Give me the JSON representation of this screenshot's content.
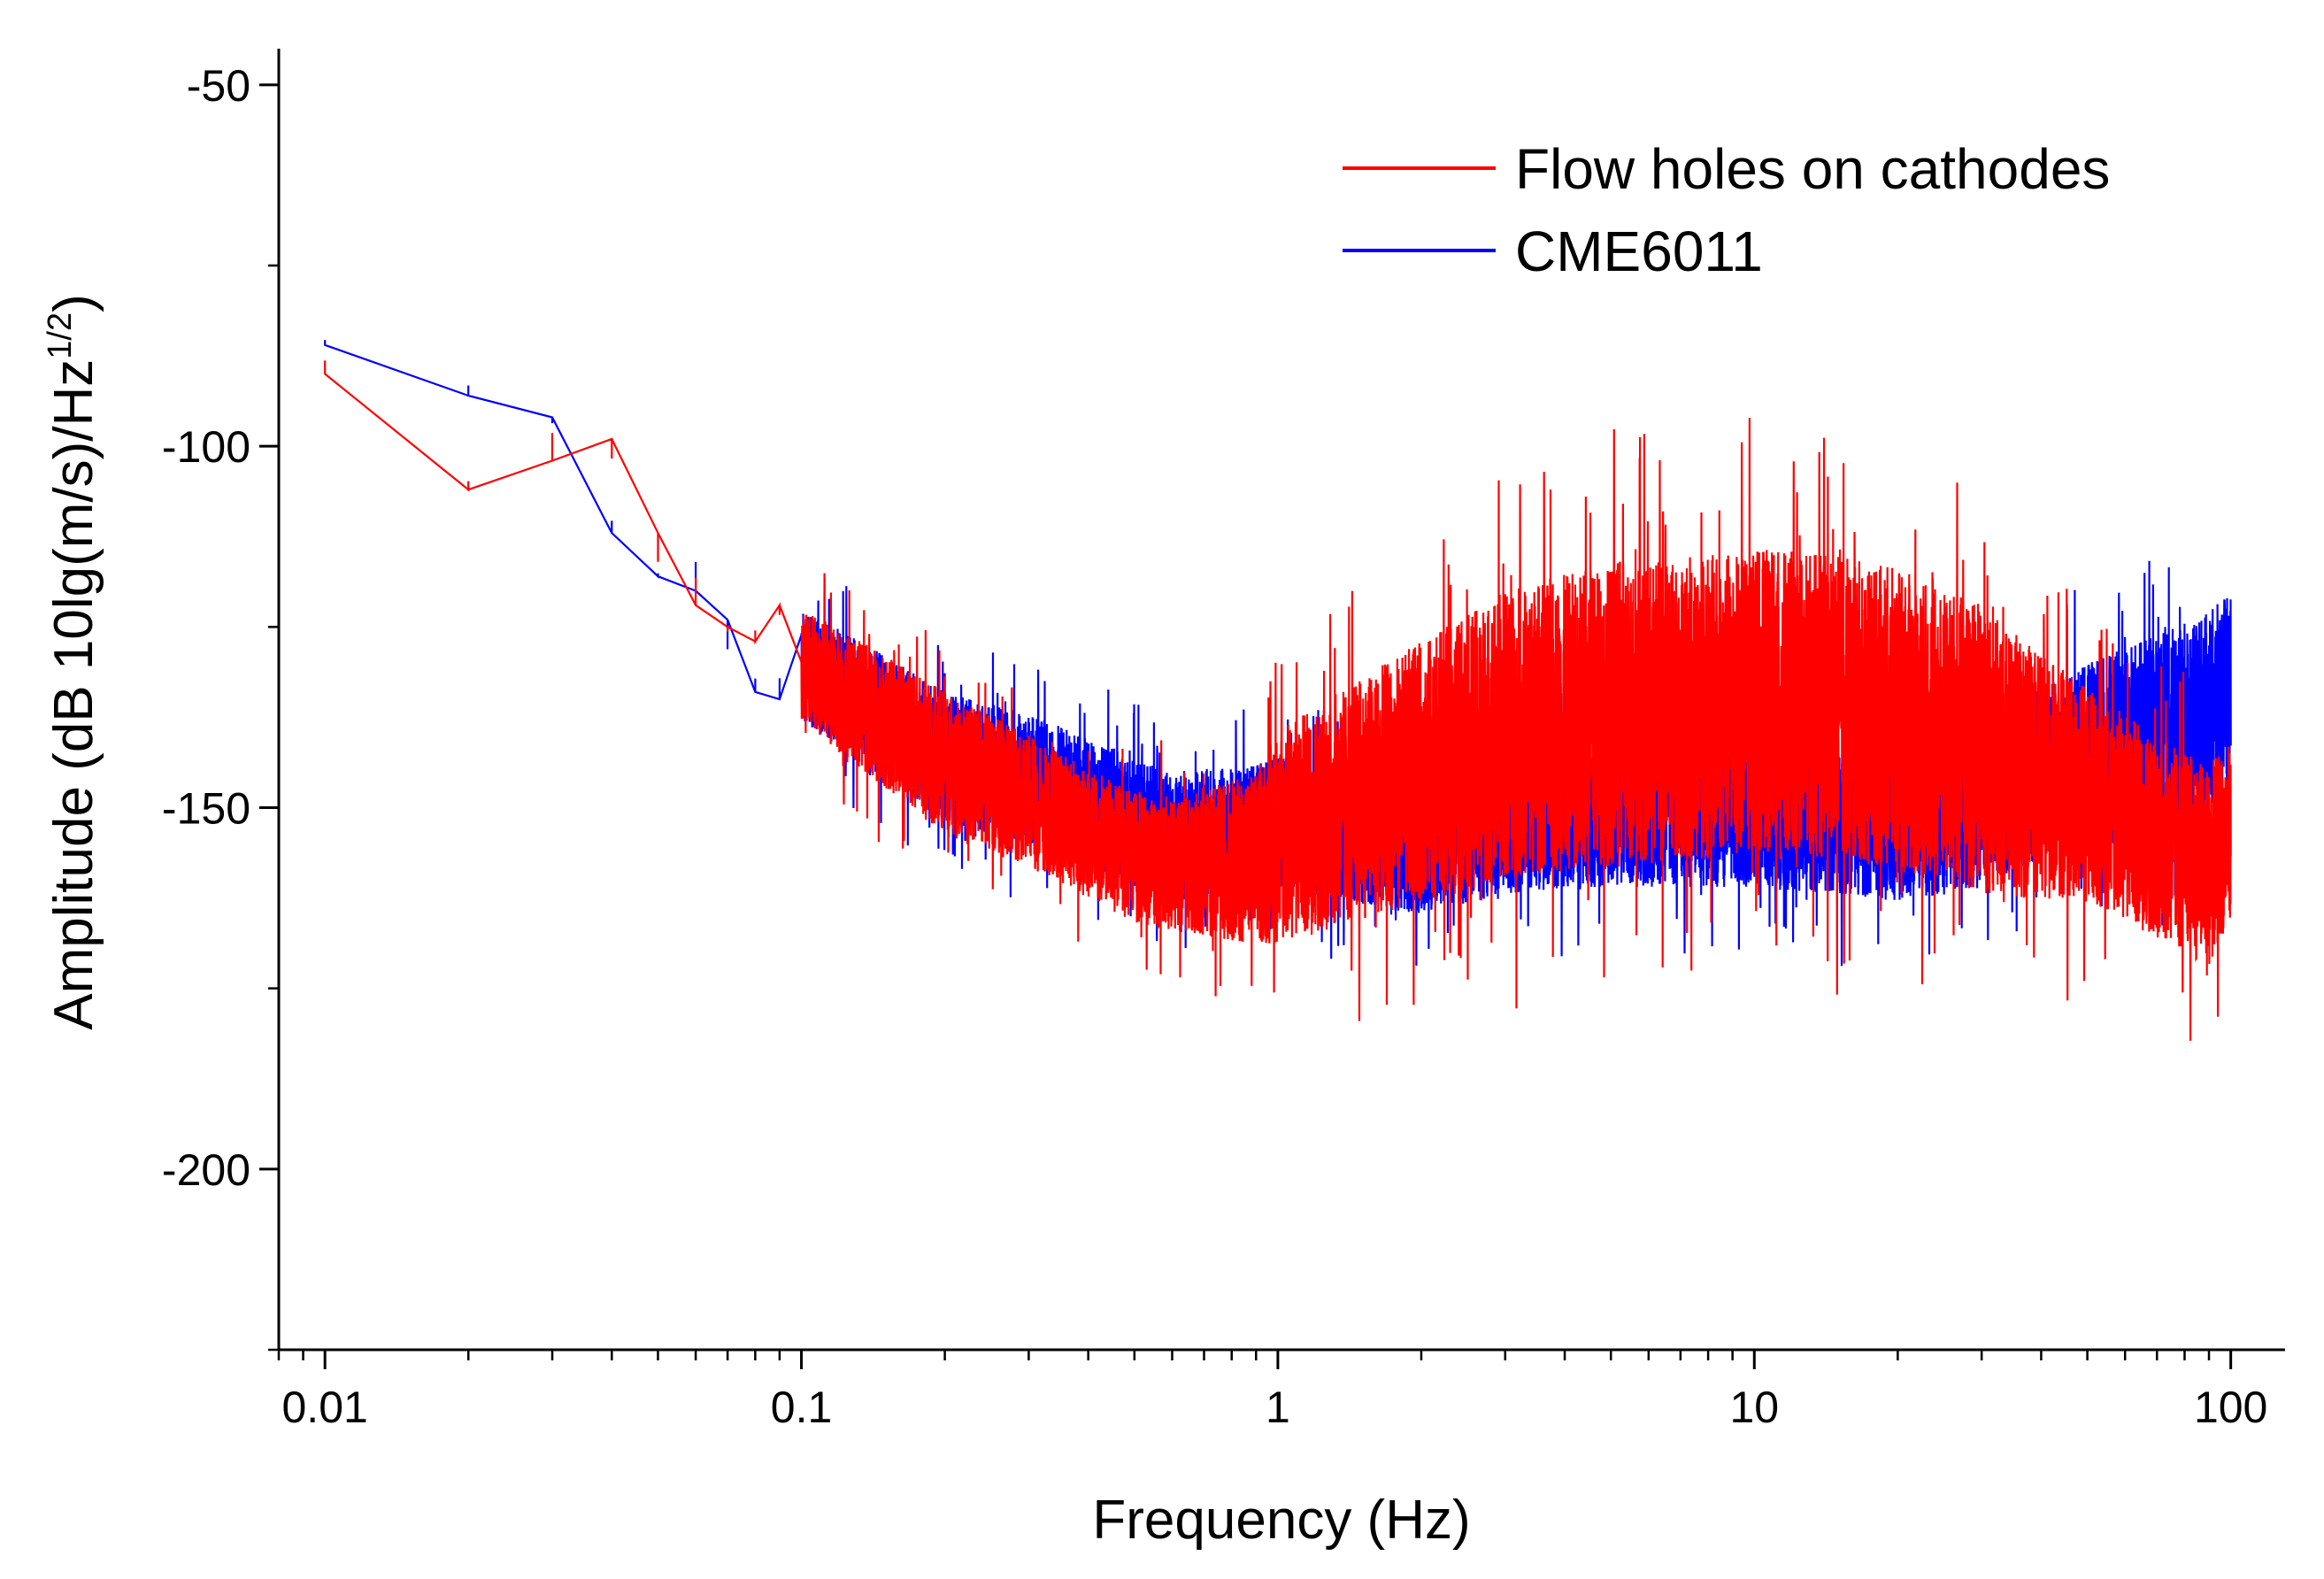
{
  "chart_data": {
    "type": "line",
    "title": "",
    "xlabel": "Frequency (Hz)",
    "ylabel_main": "Amplitude (dB 10lg(m/s)/Hz",
    "ylabel_sup": "1/2",
    "ylabel_close": ")",
    "xscale": "log",
    "xlim": [
      0.008,
      130
    ],
    "ylim": [
      -225,
      -45
    ],
    "grid": false,
    "legend_position": "top-right",
    "xticks": [
      {
        "value": 0.01,
        "label": "0.01"
      },
      {
        "value": 0.1,
        "label": "0.1"
      },
      {
        "value": 1,
        "label": "1"
      },
      {
        "value": 10,
        "label": "10"
      },
      {
        "value": 100,
        "label": "100"
      }
    ],
    "yticks": [
      {
        "value": -50,
        "label": "-50"
      },
      {
        "value": -100,
        "label": "-100"
      },
      {
        "value": -150,
        "label": "-150"
      },
      {
        "value": -200,
        "label": "-200"
      }
    ],
    "series": [
      {
        "name": "Flow holes on cathodes",
        "color": "#ff0000",
        "x": [
          0.01,
          0.02,
          0.03,
          0.04,
          0.05,
          0.06,
          0.07,
          0.08,
          0.09,
          0.1,
          0.2,
          0.3,
          0.5,
          0.6,
          0.9,
          1,
          2,
          3,
          5,
          8,
          10,
          15,
          20,
          30,
          40,
          50,
          70,
          90,
          100
        ],
        "values": [
          -90,
          -106,
          -102,
          -99,
          -112,
          -122,
          -125,
          -127,
          -122,
          -130,
          -144,
          -149,
          -157,
          -158,
          -157,
          -154,
          -145,
          -140,
          -137,
          -136,
          -135,
          -136,
          -138,
          -142,
          -146,
          -148,
          -154,
          -158,
          -153
        ],
        "spread": [
          3,
          3,
          4,
          5,
          5,
          6,
          5,
          5,
          6,
          8,
          10,
          9,
          9,
          9,
          12,
          15,
          18,
          20,
          21,
          21,
          21,
          21,
          21,
          20,
          17,
          15,
          14,
          14,
          12
        ]
      },
      {
        "name": "CME6011",
        "color": "#0000ff",
        "x": [
          0.01,
          0.02,
          0.03,
          0.04,
          0.05,
          0.06,
          0.07,
          0.08,
          0.09,
          0.1,
          0.2,
          0.3,
          0.5,
          0.6,
          0.9,
          1,
          2,
          3,
          5,
          8,
          10,
          15,
          20,
          30,
          40,
          50,
          70,
          90,
          100
        ],
        "values": [
          -86,
          -93,
          -96,
          -112,
          -118,
          -120,
          -124,
          -134,
          -135,
          -130,
          -143,
          -146,
          -152,
          -154,
          -153,
          -152,
          -155,
          -152,
          -150,
          -150,
          -150,
          -151,
          -152,
          -150,
          -145,
          -143,
          -140,
          -137,
          -132
        ],
        "spread": [
          3,
          3,
          4,
          5,
          5,
          6,
          5,
          5,
          6,
          8,
          9,
          9,
          9,
          9,
          9,
          9,
          10,
          10,
          11,
          11,
          11,
          11,
          11,
          11,
          12,
          13,
          14,
          14,
          12
        ]
      }
    ]
  }
}
